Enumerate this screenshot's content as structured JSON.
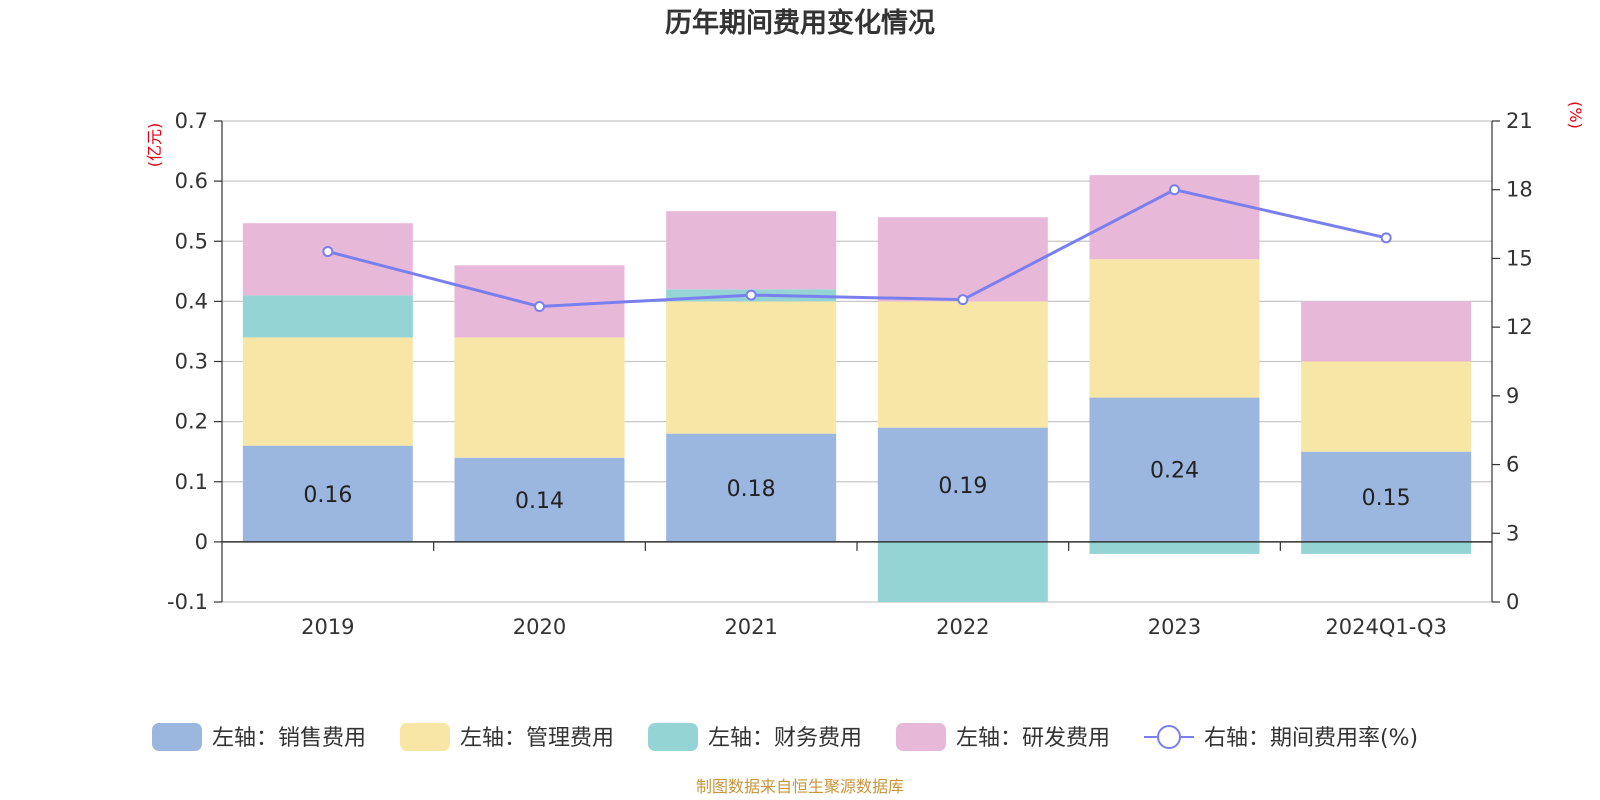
{
  "chart_data": {
    "type": "bar",
    "title": "历年期间费用变化情况",
    "categories": [
      "2019",
      "2020",
      "2021",
      "2022",
      "2023",
      "2024Q1-Q3"
    ],
    "left_axis": {
      "unit": "(亿元)",
      "ylim": [
        -0.1,
        0.7
      ],
      "ticks": [
        "-0.1",
        "0",
        "0.1",
        "0.2",
        "0.3",
        "0.4",
        "0.5",
        "0.6",
        "0.7"
      ]
    },
    "right_axis": {
      "unit": "(%)",
      "ylim": [
        0,
        21
      ],
      "ticks": [
        "0",
        "3",
        "6",
        "9",
        "12",
        "15",
        "18",
        "21"
      ]
    },
    "series": [
      {
        "name": "左轴：销售费用",
        "type": "bar",
        "axis": "left",
        "color": "#9bb7e0",
        "values": [
          0.16,
          0.14,
          0.18,
          0.19,
          0.24,
          0.15
        ],
        "labels": [
          "0.16",
          "0.14",
          "0.18",
          "0.19",
          "0.24",
          "0.15"
        ]
      },
      {
        "name": "左轴：管理费用",
        "type": "bar",
        "axis": "left",
        "color": "#f7e6a6",
        "values": [
          0.18,
          0.2,
          0.22,
          0.21,
          0.23,
          0.15
        ]
      },
      {
        "name": "左轴：财务费用",
        "type": "bar",
        "axis": "left",
        "color": "#95d4d4",
        "values": [
          0.07,
          0.0,
          0.02,
          -0.1,
          -0.02,
          -0.02
        ]
      },
      {
        "name": "左轴：研发费用",
        "type": "bar",
        "axis": "left",
        "color": "#e8b8d8",
        "values": [
          0.12,
          0.12,
          0.13,
          0.14,
          0.14,
          0.1
        ]
      },
      {
        "name": "右轴：期间费用率(%)",
        "type": "line",
        "axis": "right",
        "color": "#7a7ff0",
        "values": [
          15.3,
          12.9,
          13.4,
          13.2,
          18.0,
          15.9
        ]
      }
    ],
    "grid": true,
    "legend_position": "bottom"
  },
  "source": "制图数据来自恒生聚源数据库"
}
